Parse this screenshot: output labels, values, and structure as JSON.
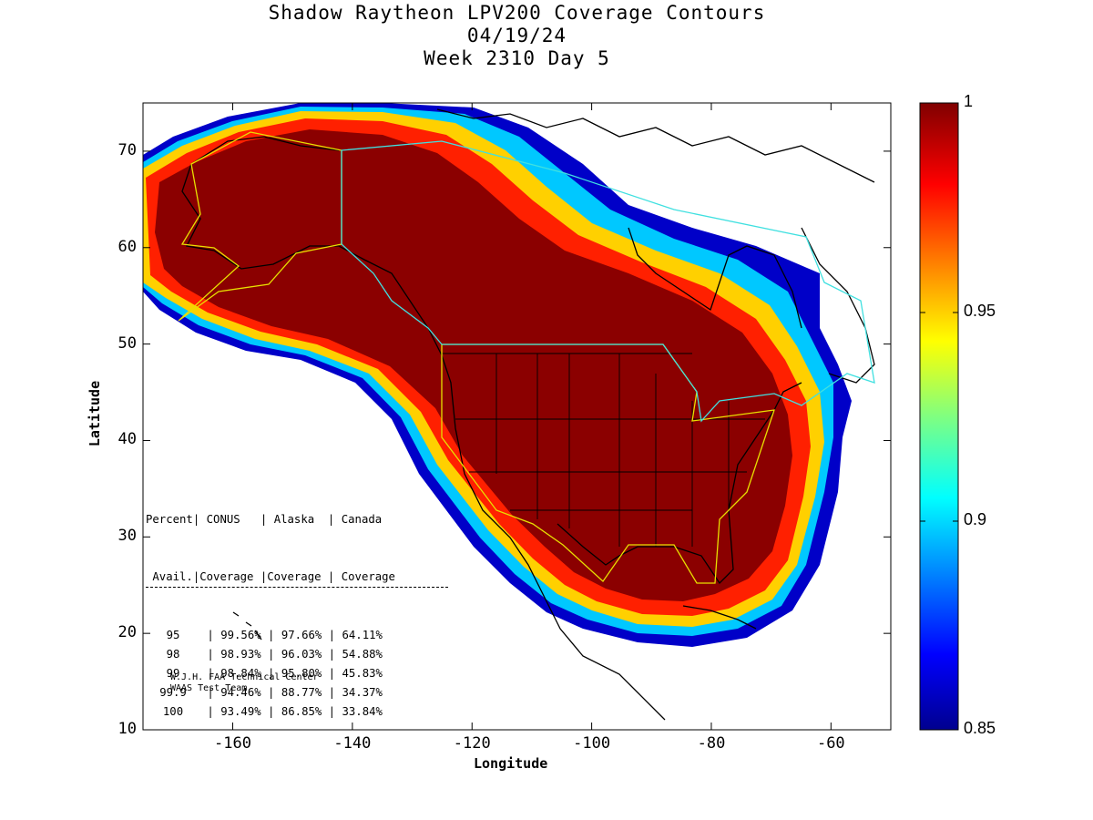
{
  "title": {
    "line1": "Shadow Raytheon LPV200 Coverage Contours",
    "line2": "04/19/24",
    "line3": "Week 2310 Day 5"
  },
  "axes": {
    "xlabel": "Longitude",
    "ylabel": "Latitude",
    "x_ticks": [
      "-160",
      "-140",
      "-120",
      "-100",
      "-80",
      "-60"
    ],
    "y_ticks": [
      "10",
      "20",
      "30",
      "40",
      "50",
      "60",
      "70"
    ],
    "xlim": [
      -175,
      -50
    ],
    "ylim": [
      10,
      75
    ]
  },
  "colorbar": {
    "ticks": [
      "1",
      "0.95",
      "0.9",
      "0.85"
    ],
    "range": [
      0.85,
      1
    ],
    "colormap": "jet",
    "low_color": "#00008f",
    "high_color": "#800000"
  },
  "stats_table": {
    "header1": [
      "Percent",
      "CONUS",
      "Alaska",
      "Canada"
    ],
    "header2": [
      "Avail.",
      "Coverage",
      "Coverage",
      "Coverage"
    ],
    "rows": [
      {
        "percent": "95",
        "conus": "99.56%",
        "alaska": "97.66%",
        "canada": "64.11%"
      },
      {
        "percent": "98",
        "conus": "98.93%",
        "alaska": "96.03%",
        "canada": "54.88%"
      },
      {
        "percent": "99",
        "conus": "98.84%",
        "alaska": "95.80%",
        "canada": "45.83%"
      },
      {
        "percent": "99.9",
        "conus": "94.46%",
        "alaska": "88.77%",
        "canada": "34.37%"
      },
      {
        "percent": "100",
        "conus": "93.49%",
        "alaska": "86.85%",
        "canada": "33.84%"
      }
    ]
  },
  "credit": {
    "line1": "W.J.H. FAA Technical Center",
    "line2": "WAAS Test Team"
  },
  "colors": {
    "conus_boundary": "#e8e000",
    "canada_boundary": "#40e0e0",
    "coastline": "#000000"
  }
}
